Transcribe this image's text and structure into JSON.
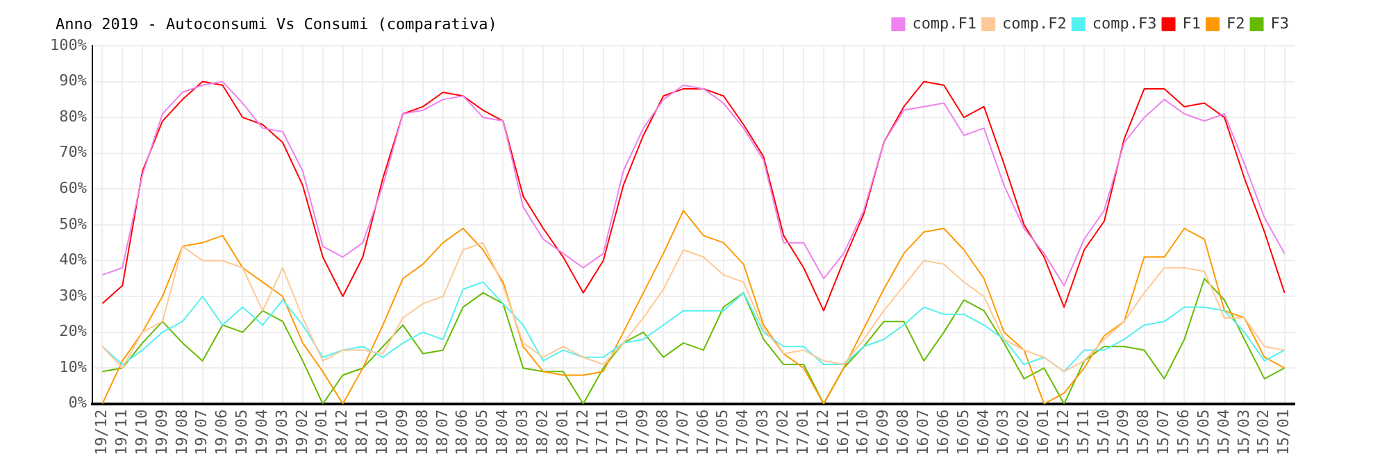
{
  "chart_data": {
    "type": "line",
    "title": "Anno 2019 - Autoconsumi Vs Consumi (comparativa)",
    "categories": [
      "19/12",
      "19/11",
      "19/10",
      "19/09",
      "19/08",
      "19/07",
      "19/06",
      "19/05",
      "19/04",
      "19/03",
      "19/02",
      "19/01",
      "18/12",
      "18/11",
      "18/10",
      "18/09",
      "18/08",
      "18/07",
      "18/06",
      "18/05",
      "18/04",
      "18/03",
      "18/02",
      "18/01",
      "17/12",
      "17/11",
      "17/10",
      "17/09",
      "17/08",
      "17/07",
      "17/06",
      "17/05",
      "17/04",
      "17/03",
      "17/02",
      "17/01",
      "16/12",
      "16/11",
      "16/10",
      "16/09",
      "16/08",
      "16/07",
      "16/06",
      "16/05",
      "16/04",
      "16/03",
      "16/02",
      "16/01",
      "15/12",
      "15/11",
      "15/10",
      "15/09",
      "15/08",
      "15/07",
      "15/06",
      "15/05",
      "15/04",
      "15/03",
      "15/02",
      "15/01"
    ],
    "series": [
      {
        "name": "comp.F1",
        "color": "#ee82ee",
        "values": [
          36,
          38,
          64,
          81,
          87,
          89,
          90,
          84,
          77,
          76,
          65,
          44,
          41,
          45,
          61,
          81,
          82,
          85,
          86,
          80,
          79,
          55,
          46,
          42,
          38,
          42,
          65,
          77,
          85,
          89,
          88,
          84,
          77,
          68,
          45,
          45,
          35,
          42,
          54,
          73,
          82,
          83,
          84,
          75,
          77,
          61,
          49,
          42,
          33,
          46,
          54,
          73,
          80,
          85,
          81,
          79,
          81,
          67,
          52,
          42
        ]
      },
      {
        "name": "comp.F2",
        "color": "#ffc896",
        "values": [
          16,
          10,
          20,
          23,
          44,
          40,
          40,
          38,
          26,
          38,
          24,
          12,
          15,
          15,
          14,
          24,
          28,
          30,
          43,
          45,
          33,
          17,
          13,
          16,
          13,
          11,
          17,
          24,
          32,
          43,
          41,
          36,
          34,
          21,
          14,
          15,
          12,
          11,
          18,
          26,
          33,
          40,
          39,
          34,
          30,
          18,
          15,
          13,
          9,
          12,
          18,
          23,
          31,
          38,
          38,
          37,
          24,
          24,
          16,
          15
        ]
      },
      {
        "name": "comp.F3",
        "color": "#55f0f0",
        "values": [
          16,
          11,
          15,
          20,
          23,
          30,
          22,
          27,
          22,
          29,
          22,
          13,
          15,
          16,
          13,
          17,
          20,
          18,
          32,
          34,
          28,
          22,
          12,
          15,
          13,
          13,
          17,
          18,
          22,
          26,
          26,
          26,
          31,
          20,
          16,
          16,
          11,
          11,
          16,
          18,
          22,
          27,
          25,
          25,
          22,
          18,
          11,
          13,
          9,
          15,
          15,
          18,
          22,
          23,
          27,
          27,
          26,
          20,
          12,
          15
        ]
      },
      {
        "name": "F1",
        "color": "#ff0000",
        "values": [
          28,
          33,
          65,
          79,
          85,
          90,
          89,
          80,
          78,
          73,
          61,
          41,
          30,
          41,
          63,
          81,
          83,
          87,
          86,
          82,
          79,
          58,
          49,
          41,
          31,
          40,
          61,
          75,
          86,
          88,
          88,
          86,
          78,
          69,
          47,
          38,
          26,
          40,
          53,
          73,
          83,
          90,
          89,
          80,
          83,
          67,
          50,
          41,
          27,
          43,
          51,
          74,
          88,
          88,
          83,
          84,
          80,
          63,
          48,
          31
        ]
      },
      {
        "name": "F2",
        "color": "#ff9900",
        "values": [
          0,
          12,
          20,
          30,
          44,
          45,
          47,
          38,
          34,
          30,
          17,
          9,
          0,
          10,
          22,
          35,
          39,
          45,
          49,
          43,
          34,
          16,
          9,
          8,
          8,
          9,
          20,
          31,
          42,
          54,
          47,
          45,
          39,
          22,
          14,
          10,
          0,
          10,
          21,
          32,
          42,
          48,
          49,
          43,
          35,
          20,
          15,
          0,
          3,
          10,
          19,
          23,
          41,
          41,
          49,
          46,
          26,
          24,
          13,
          10
        ]
      },
      {
        "name": "F3",
        "color": "#66bb00",
        "values": [
          9,
          10,
          17,
          23,
          17,
          12,
          22,
          20,
          26,
          23,
          12,
          0,
          8,
          10,
          16,
          22,
          14,
          15,
          27,
          31,
          28,
          10,
          9,
          9,
          0,
          10,
          17,
          20,
          13,
          17,
          15,
          27,
          31,
          18,
          11,
          11,
          0,
          10,
          16,
          23,
          23,
          12,
          20,
          29,
          26,
          17,
          7,
          10,
          0,
          12,
          16,
          16,
          15,
          7,
          18,
          35,
          29,
          18,
          7,
          10
        ]
      }
    ],
    "ylim": [
      0,
      100
    ],
    "yticks": [
      {
        "value": 0,
        "label": "0%"
      },
      {
        "value": 10,
        "label": "10%"
      },
      {
        "value": 20,
        "label": "20%"
      },
      {
        "value": 30,
        "label": "30%"
      },
      {
        "value": 40,
        "label": "40%"
      },
      {
        "value": 50,
        "label": "50%"
      },
      {
        "value": 60,
        "label": "60%"
      },
      {
        "value": 70,
        "label": "70%"
      },
      {
        "value": 80,
        "label": "80%"
      },
      {
        "value": 90,
        "label": "90%"
      },
      {
        "value": 100,
        "label": "100%"
      }
    ],
    "grid": true,
    "legend": "top right",
    "marker": "none",
    "line_style": "solid"
  }
}
